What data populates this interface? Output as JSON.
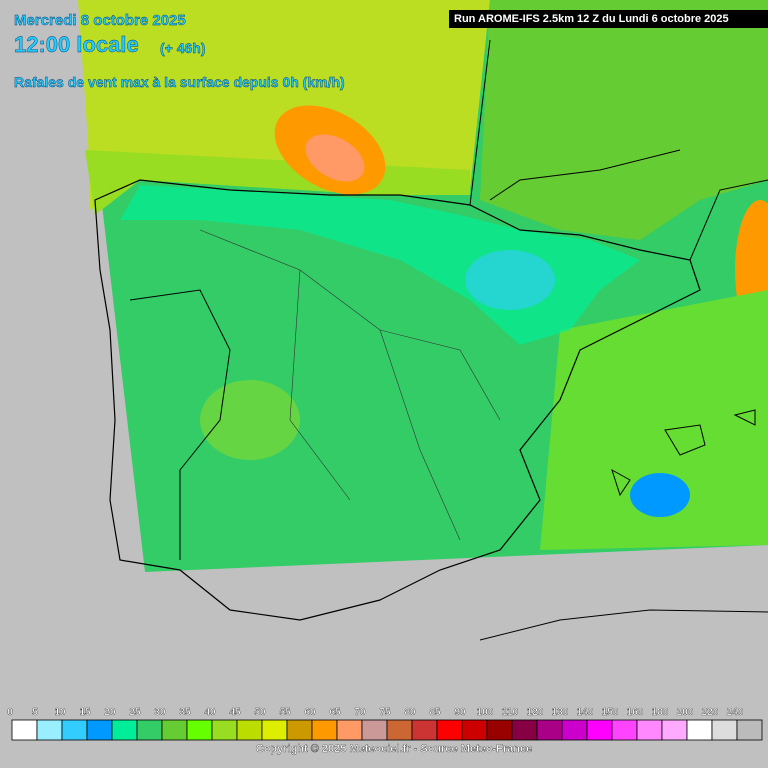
{
  "header": {
    "date": "Mercredi 8 octobre 2025",
    "time": "12:00 locale",
    "lead": "(+ 46h)",
    "parameter": "Rafales de vent max à la surface depuis 0h (km/h)"
  },
  "run": "Run AROME-IFS 2.5km 12 Z du Lundi 6 octobre 2025",
  "legend": {
    "labels": [
      0,
      5,
      10,
      15,
      20,
      25,
      30,
      35,
      40,
      45,
      50,
      55,
      60,
      65,
      70,
      75,
      80,
      85,
      90,
      100,
      110,
      120,
      130,
      140,
      150,
      160,
      180,
      200,
      220,
      240
    ],
    "colors": [
      "#ffffff",
      "#99eeff",
      "#33ccff",
      "#0099ff",
      "#00ee99",
      "#33cc66",
      "#66cc33",
      "#66ff00",
      "#99dd22",
      "#bbdd00",
      "#ddee00",
      "#cc9900",
      "#ff9900",
      "#ff9966",
      "#cc9999",
      "#cc6633",
      "#cc3333",
      "#ff0000",
      "#cc0000",
      "#990000",
      "#880044",
      "#aa0088",
      "#cc00cc",
      "#ff00ff",
      "#ff44ff",
      "#ff88ff",
      "#ffaaff",
      "#ffffff",
      "#dddddd",
      "#bbbbbb"
    ]
  },
  "footer": "Copyright © 2025 Meteociel.fr - Source Meteo-France"
}
